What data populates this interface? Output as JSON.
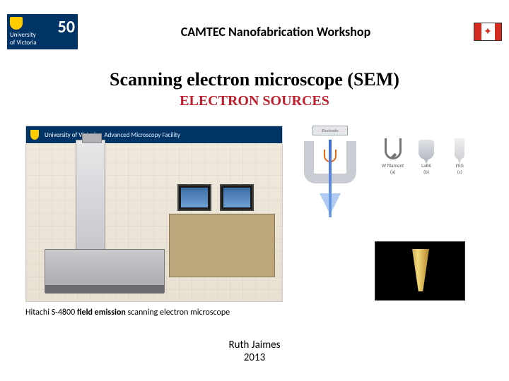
{
  "header": {
    "logo": {
      "institution_top": "University",
      "institution_bottom": "of Victoria",
      "badge": "50"
    },
    "workshop_title": "CAMTEC Nanofabrication Workshop",
    "flag_name": "canada-flag"
  },
  "titles": {
    "main": "Scanning electron microscope (SEM)",
    "subtitle": "ELECTRON SOURCES",
    "subtitle_color": "#bf1f2e"
  },
  "photo": {
    "banner_institution": "University of Victoria",
    "banner_facility": "Advanced Microscopy Facility"
  },
  "electron_gun": {
    "electrode_label": "Electrode",
    "sources": [
      {
        "label": "W filament",
        "sub": "(a)"
      },
      {
        "label": "LaB6",
        "sub": "(b)"
      },
      {
        "label": "FEG",
        "sub": "(c)"
      }
    ]
  },
  "caption": {
    "prefix": "Hitachi S-4800 ",
    "bold": "field emission",
    "suffix": " scanning electron microscope"
  },
  "footer": {
    "author": "Ruth Jaimes",
    "year": "2013"
  }
}
